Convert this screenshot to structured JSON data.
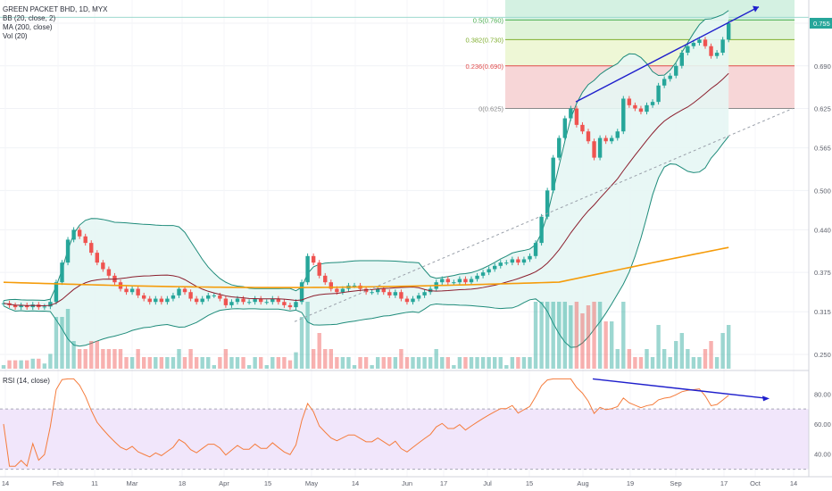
{
  "legend": {
    "title": "GREEN PACKET BHD, 1D, MYX",
    "bb": "BB (20, close, 2)",
    "ma": "MA (200, close)",
    "vol": "Vol (20)"
  },
  "rsi_legend": "RSI (14, close)",
  "colors": {
    "up": "#26a69a",
    "down": "#ef5350",
    "ma20": "#8b1e2d",
    "ma200": "#f59c0b",
    "bb_band": "#1e8b7a",
    "bb_fill": "#e6f6f4",
    "rsi_line": "#f57c3c",
    "rsi_fill": "#f1e6fb",
    "trend": "#1f1fcc",
    "fib_green": "#d4f1e2",
    "fib_red": "#f7d6d7"
  },
  "chart_data": {
    "type": "candlestick",
    "title": "GREEN PACKET BHD, 1D, MYX",
    "price_ticks": [
      "0.250",
      "0.315",
      "0.375",
      "0.440",
      "0.500",
      "0.565",
      "0.625",
      "0.690",
      "0.755"
    ],
    "rsi_ticks": [
      "40.00",
      "60.00",
      "80.00"
    ],
    "x_ticks": [
      "14",
      "Feb",
      "11",
      "Mar",
      "18",
      "Apr",
      "15",
      "May",
      "14",
      "Jun",
      "17",
      "Jul",
      "15",
      "Aug",
      "19",
      "Sep",
      "17",
      "Oct",
      "14"
    ],
    "last_price": "0.755",
    "fib_levels": [
      {
        "label": "0(0.625)",
        "value": 0.625
      },
      {
        "label": "0.236(0.690)",
        "value": 0.69
      },
      {
        "label": "0.382(0.730)",
        "value": 0.73
      },
      {
        "label": "0.5(0.760)",
        "value": 0.76
      }
    ],
    "close": [
      0.328,
      0.325,
      0.322,
      0.325,
      0.322,
      0.326,
      0.322,
      0.323,
      0.33,
      0.36,
      0.39,
      0.425,
      0.44,
      0.43,
      0.42,
      0.405,
      0.39,
      0.38,
      0.37,
      0.36,
      0.35,
      0.345,
      0.35,
      0.34,
      0.335,
      0.33,
      0.335,
      0.33,
      0.335,
      0.34,
      0.35,
      0.345,
      0.335,
      0.33,
      0.335,
      0.34,
      0.34,
      0.335,
      0.325,
      0.33,
      0.335,
      0.33,
      0.33,
      0.335,
      0.33,
      0.33,
      0.335,
      0.33,
      0.325,
      0.322,
      0.33,
      0.36,
      0.4,
      0.39,
      0.37,
      0.36,
      0.35,
      0.345,
      0.35,
      0.355,
      0.355,
      0.35,
      0.345,
      0.345,
      0.35,
      0.345,
      0.34,
      0.345,
      0.335,
      0.33,
      0.335,
      0.34,
      0.345,
      0.35,
      0.36,
      0.365,
      0.36,
      0.36,
      0.365,
      0.36,
      0.365,
      0.37,
      0.375,
      0.38,
      0.385,
      0.39,
      0.39,
      0.395,
      0.39,
      0.395,
      0.4,
      0.42,
      0.46,
      0.5,
      0.55,
      0.58,
      0.61,
      0.625,
      0.6,
      0.59,
      0.575,
      0.55,
      0.58,
      0.575,
      0.58,
      0.59,
      0.64,
      0.63,
      0.625,
      0.62,
      0.63,
      0.635,
      0.66,
      0.67,
      0.675,
      0.69,
      0.71,
      0.72,
      0.725,
      0.73,
      0.72,
      0.705,
      0.71,
      0.73,
      0.755
    ],
    "volume_note": "volume bars drawn under price pane; RSI(14) in lower pane with 70/30 band"
  }
}
